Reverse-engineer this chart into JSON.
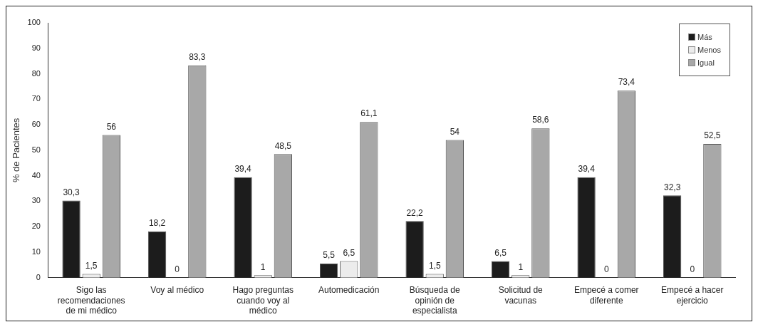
{
  "chart_data": {
    "type": "bar",
    "ylabel": "% de Pacientes",
    "categories": [
      "Sigo las recomendaciones de mi médico",
      "Voy al médico",
      "Hago preguntas cuando voy al médico",
      "Automedicación",
      "Búsqueda de opinión de especialista",
      "Solicitud de vacunas",
      "Empecé a comer diferente",
      "Empecé a hacer ejercicio"
    ],
    "series": [
      {
        "name": "Más",
        "color": "#1c1c1c",
        "values": [
          30.3,
          18.2,
          39.4,
          5.5,
          22.2,
          6.5,
          39.4,
          32.3
        ],
        "value_labels": [
          "30,3",
          "18,2",
          "39,4",
          "5,5",
          "22,2",
          "6,5",
          "39,4",
          "32,3"
        ]
      },
      {
        "name": "Menos",
        "color": "#ececec",
        "values": [
          1.5,
          0,
          1,
          6.5,
          1.5,
          1,
          0,
          0
        ],
        "value_labels": [
          "1,5",
          "0",
          "1",
          "6,5",
          "1,5",
          "1",
          "0",
          "0"
        ]
      },
      {
        "name": "Igual",
        "color": "#a8a8a8",
        "values": [
          56,
          83.3,
          48.5,
          61.1,
          54,
          58.6,
          73.4,
          52.5
        ],
        "value_labels": [
          "56",
          "83,3",
          "48,5",
          "61,1",
          "54",
          "58,6",
          "73,4",
          "52,5"
        ]
      }
    ],
    "ylim": [
      0,
      100
    ],
    "yticks": [
      0,
      10,
      20,
      30,
      40,
      50,
      60,
      70,
      80,
      90,
      100
    ],
    "grid": false,
    "legend": "top right"
  }
}
